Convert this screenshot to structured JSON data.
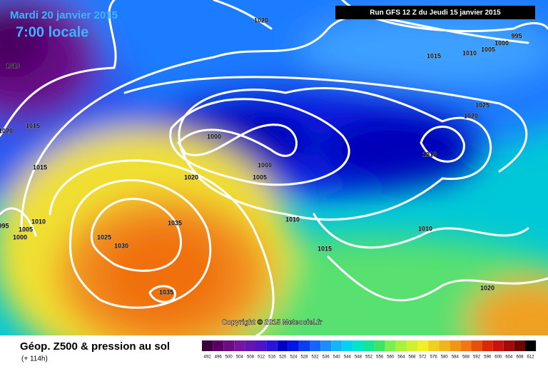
{
  "header": {
    "date": "Mardi 20 janvier 2015",
    "time": "7:00 locale",
    "run": "Run GFS 12 Z du Jeudi 15 janvier 2015"
  },
  "isobar_labels": [
    "1020",
    "995",
    "1000",
    "1005",
    "1010",
    "1015",
    "1010",
    "1025",
    "1020",
    "1020",
    "1015",
    "1000",
    "1010",
    "1000",
    "1015",
    "1020",
    "1005",
    "995",
    "1005",
    "1010",
    "1000",
    "1035",
    "1025",
    "1030",
    "1010",
    "1010",
    "1015",
    "1035",
    "1020"
  ],
  "copyright": "Copyright © 2015 Meteociel.fr",
  "footer": {
    "title": "Géop. Z500 & pression au sol",
    "lead": "(+ 114h)"
  },
  "legend": [
    {
      "label": "492",
      "color": "#3c003c"
    },
    {
      "label": "496",
      "color": "#5a0064"
    },
    {
      "label": "500",
      "color": "#6e0a82"
    },
    {
      "label": "504",
      "color": "#7814a0"
    },
    {
      "label": "508",
      "color": "#6414b4"
    },
    {
      "label": "512",
      "color": "#5014c8"
    },
    {
      "label": "516",
      "color": "#2814dc"
    },
    {
      "label": "520",
      "color": "#0000c8"
    },
    {
      "label": "524",
      "color": "#0014e6"
    },
    {
      "label": "528",
      "color": "#0a3cf0"
    },
    {
      "label": "532",
      "color": "#1464ff"
    },
    {
      "label": "536",
      "color": "#1e8cff"
    },
    {
      "label": "540",
      "color": "#14b4ff"
    },
    {
      "label": "544",
      "color": "#00d2f0"
    },
    {
      "label": "548",
      "color": "#00e6c8"
    },
    {
      "label": "552",
      "color": "#14e696"
    },
    {
      "label": "556",
      "color": "#3ce664"
    },
    {
      "label": "560",
      "color": "#78f050"
    },
    {
      "label": "564",
      "color": "#aaf03c"
    },
    {
      "label": "568",
      "color": "#d2f032"
    },
    {
      "label": "572",
      "color": "#f0f028"
    },
    {
      "label": "576",
      "color": "#f0d21e"
    },
    {
      "label": "580",
      "color": "#f0b41e"
    },
    {
      "label": "584",
      "color": "#f09614"
    },
    {
      "label": "588",
      "color": "#f07814"
    },
    {
      "label": "592",
      "color": "#e6500a"
    },
    {
      "label": "596",
      "color": "#dc280a"
    },
    {
      "label": "600",
      "color": "#c8140a"
    },
    {
      "label": "604",
      "color": "#a00a0a"
    },
    {
      "label": "608",
      "color": "#6e0505"
    },
    {
      "label": "612",
      "color": "#000000"
    }
  ]
}
